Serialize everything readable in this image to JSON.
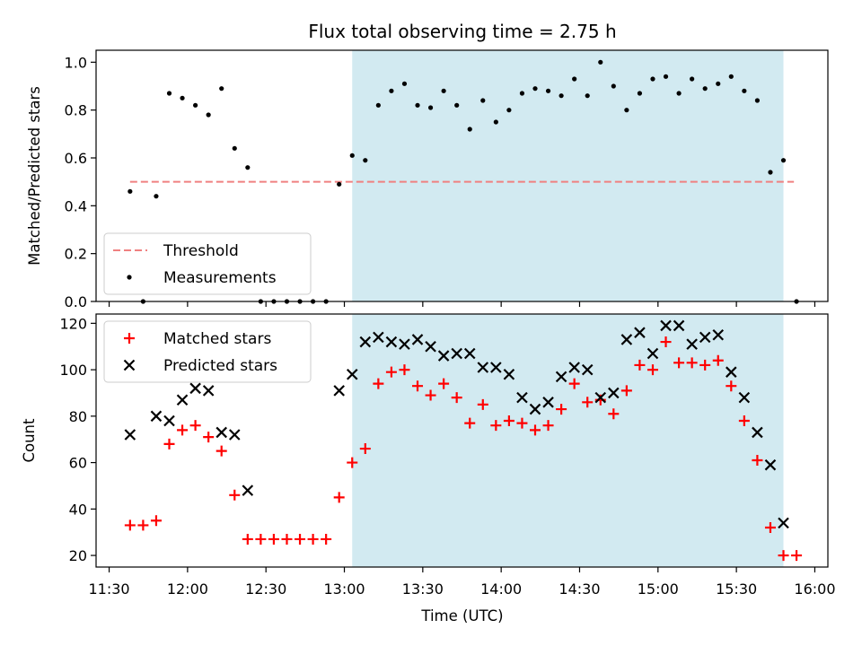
{
  "chart_data": {
    "title": "Flux total observing time = 2.75 h",
    "xlabel": "Time (UTC)",
    "x_ticks": [
      "11:30",
      "12:00",
      "12:30",
      "13:00",
      "13:30",
      "14:00",
      "14:30",
      "15:00",
      "15:30",
      "16:00"
    ],
    "x_range": [
      "11:25",
      "16:05"
    ],
    "shaded_interval": {
      "start": "13:03",
      "end": "15:48",
      "color": "#add8e6"
    },
    "panels": [
      {
        "type": "scatter",
        "ylabel": "Matched/Predicted stars",
        "ylim": [
          0,
          1.05
        ],
        "yticks": [
          "0.0",
          "0.2",
          "0.4",
          "0.6",
          "0.8",
          "1.0"
        ],
        "legend_position": "lower-left",
        "series": [
          {
            "name": "Threshold",
            "style": "dashed-line",
            "color": "#f08080",
            "x": [
              "11:38",
              "15:52"
            ],
            "y": [
              0.5,
              0.5
            ]
          },
          {
            "name": "Measurements",
            "style": "dot",
            "color": "#000000",
            "x": [
              "11:38",
              "11:43",
              "11:48",
              "11:53",
              "11:58",
              "12:03",
              "12:08",
              "12:13",
              "12:18",
              "12:23",
              "12:28",
              "12:33",
              "12:38",
              "12:43",
              "12:48",
              "12:53",
              "12:58",
              "13:03",
              "13:08",
              "13:13",
              "13:18",
              "13:23",
              "13:28",
              "13:33",
              "13:38",
              "13:43",
              "13:48",
              "13:53",
              "13:58",
              "14:03",
              "14:08",
              "14:13",
              "14:18",
              "14:23",
              "14:28",
              "14:33",
              "14:38",
              "14:43",
              "14:48",
              "14:53",
              "14:58",
              "15:03",
              "15:08",
              "15:13",
              "15:18",
              "15:23",
              "15:28",
              "15:33",
              "15:38",
              "15:43",
              "15:48",
              "15:53"
            ],
            "y": [
              0.46,
              0.0,
              0.44,
              0.87,
              0.85,
              0.82,
              0.78,
              0.89,
              0.64,
              0.56,
              0.0,
              0.0,
              0.0,
              0.0,
              0.0,
              0.0,
              0.49,
              0.61,
              0.59,
              0.82,
              0.88,
              0.91,
              0.82,
              0.81,
              0.88,
              0.82,
              0.72,
              0.84,
              0.75,
              0.8,
              0.87,
              0.89,
              0.88,
              0.86,
              0.93,
              0.86,
              1.0,
              0.9,
              0.8,
              0.87,
              0.93,
              0.94,
              0.87,
              0.93,
              0.89,
              0.91,
              0.94,
              0.88,
              0.84,
              0.54,
              0.59,
              0.0
            ]
          }
        ]
      },
      {
        "type": "scatter",
        "ylabel": "Count",
        "ylim": [
          15,
          124
        ],
        "yticks": [
          "20",
          "40",
          "60",
          "80",
          "100",
          "120"
        ],
        "legend_position": "upper-left",
        "series": [
          {
            "name": "Matched stars",
            "style": "plus",
            "color": "#ff0000",
            "x": [
              "11:38",
              "11:43",
              "11:48",
              "11:53",
              "11:58",
              "12:03",
              "12:08",
              "12:13",
              "12:18",
              "12:23",
              "12:28",
              "12:33",
              "12:38",
              "12:43",
              "12:48",
              "12:53",
              "12:58",
              "13:03",
              "13:08",
              "13:13",
              "13:18",
              "13:23",
              "13:28",
              "13:33",
              "13:38",
              "13:43",
              "13:48",
              "13:53",
              "13:58",
              "14:03",
              "14:08",
              "14:13",
              "14:18",
              "14:23",
              "14:28",
              "14:33",
              "14:38",
              "14:43",
              "14:48",
              "14:53",
              "14:58",
              "15:03",
              "15:08",
              "15:13",
              "15:18",
              "15:23",
              "15:28",
              "15:33",
              "15:38",
              "15:43",
              "15:48",
              "15:53"
            ],
            "y": [
              33,
              33,
              35,
              68,
              74,
              76,
              71,
              65,
              46,
              27,
              27,
              27,
              27,
              27,
              27,
              27,
              45,
              60,
              66,
              94,
              99,
              100,
              93,
              89,
              94,
              88,
              77,
              85,
              76,
              78,
              77,
              74,
              76,
              83,
              94,
              86,
              87,
              81,
              91,
              102,
              100,
              112,
              103,
              103,
              102,
              104,
              93,
              78,
              61,
              32,
              20,
              20
            ]
          },
          {
            "name": "Predicted stars",
            "style": "x",
            "color": "#000000",
            "x": [
              "11:38",
              "11:48",
              "11:53",
              "11:58",
              "12:03",
              "12:08",
              "12:13",
              "12:18",
              "12:23",
              "12:58",
              "13:03",
              "13:08",
              "13:13",
              "13:18",
              "13:23",
              "13:28",
              "13:33",
              "13:38",
              "13:43",
              "13:48",
              "13:53",
              "13:58",
              "14:03",
              "14:08",
              "14:13",
              "14:18",
              "14:23",
              "14:28",
              "14:33",
              "14:38",
              "14:43",
              "14:48",
              "14:53",
              "14:58",
              "15:03",
              "15:08",
              "15:13",
              "15:18",
              "15:23",
              "15:28",
              "15:33",
              "15:38",
              "15:43",
              "15:48"
            ],
            "y": [
              72,
              80,
              78,
              87,
              92,
              91,
              73,
              72,
              48,
              91,
              98,
              112,
              114,
              112,
              111,
              113,
              110,
              106,
              107,
              107,
              101,
              101,
              98,
              88,
              83,
              86,
              97,
              101,
              100,
              88,
              90,
              113,
              116,
              107,
              119,
              119,
              111,
              114,
              115,
              99,
              88,
              73,
              59,
              34
            ]
          }
        ]
      }
    ]
  }
}
